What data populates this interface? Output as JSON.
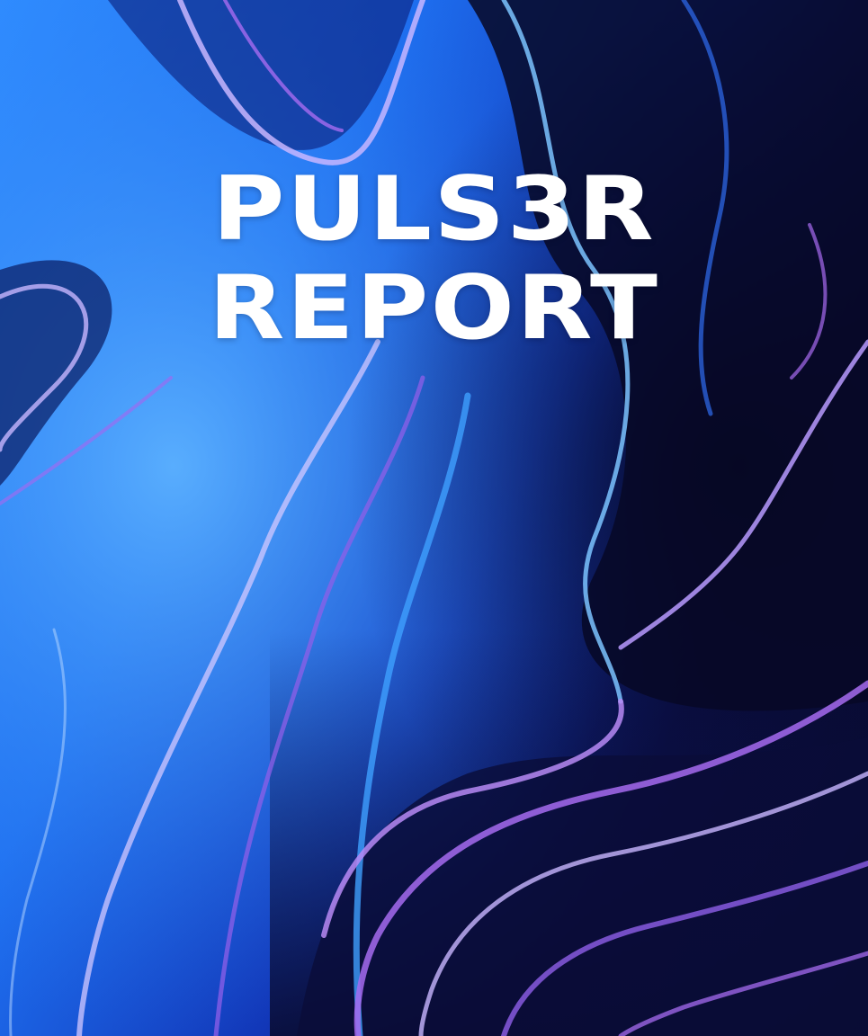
{
  "cover": {
    "title_line_1": "PULS3R",
    "title_line_2": "REPORT",
    "colors": {
      "light_blue": "#3a9bff",
      "royal_blue": "#1a4fd8",
      "violet": "#a66bf0",
      "lavender": "#c8b6ff",
      "navy": "#070825",
      "text": "#ffffff"
    }
  }
}
